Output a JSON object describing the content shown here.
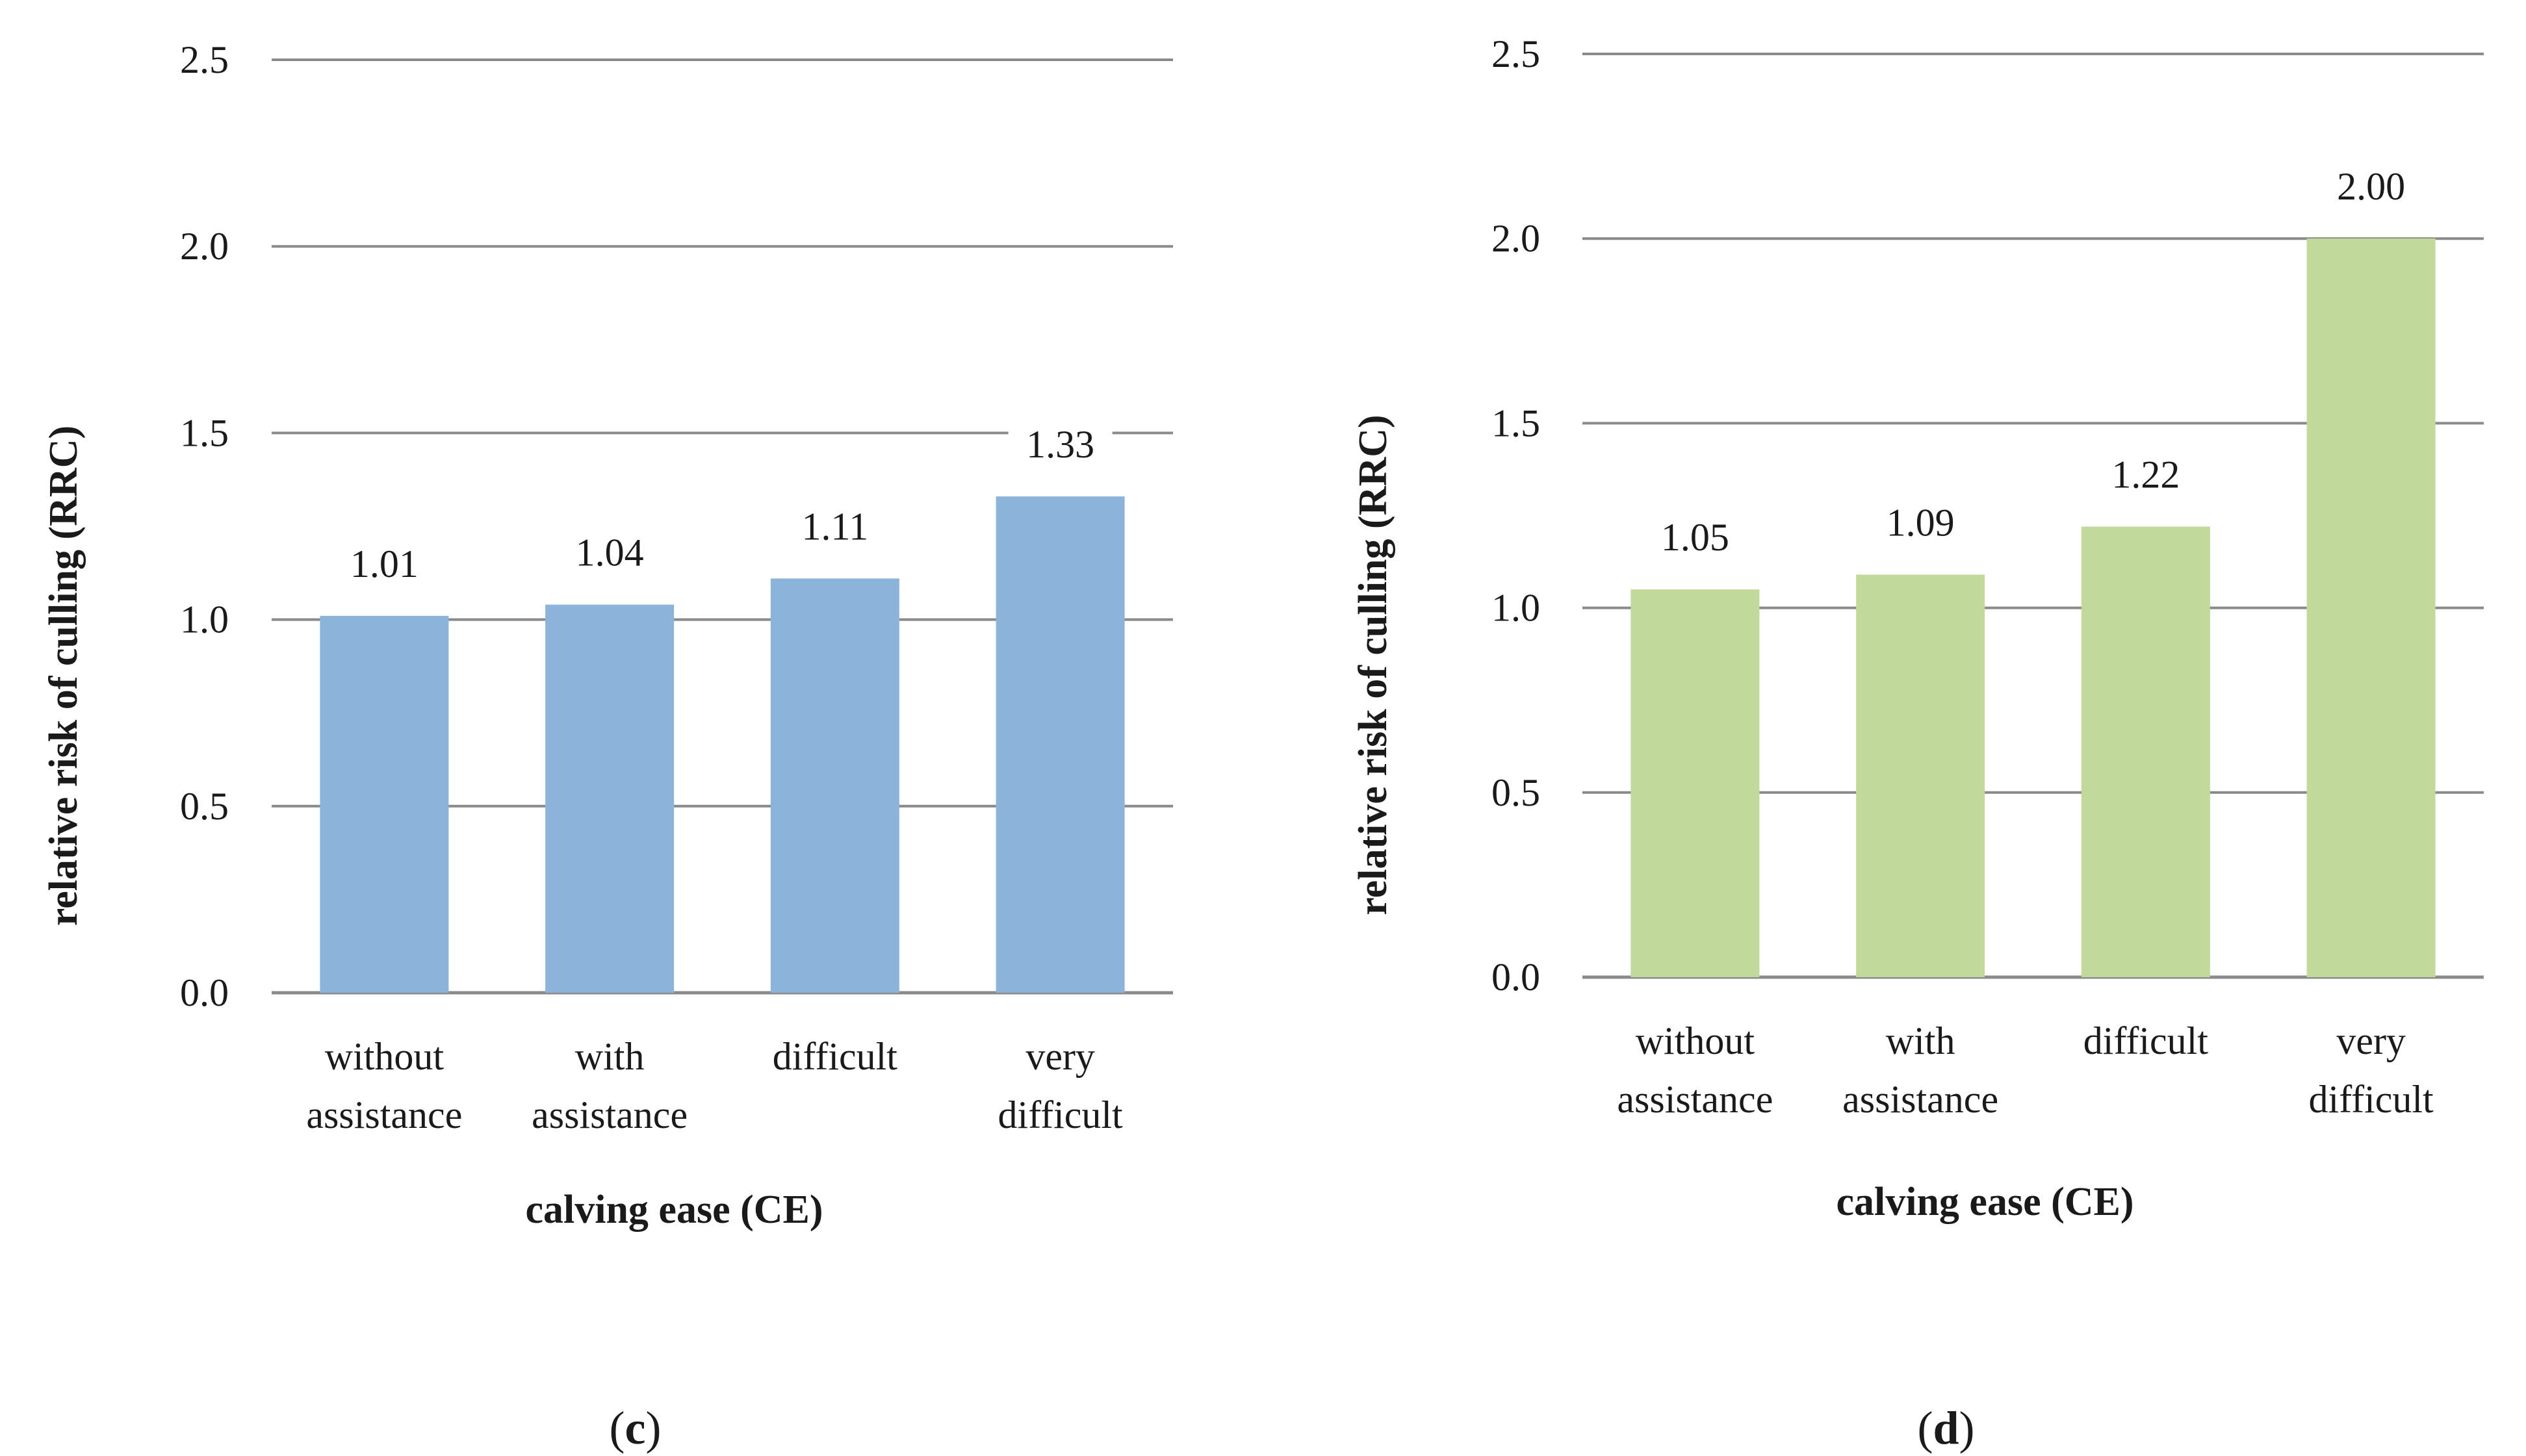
{
  "chart_data": [
    {
      "type": "bar",
      "panel": "c",
      "title": "",
      "xlabel": "calving ease (CE)",
      "ylabel": "relative risk of culling (RRC)",
      "ylim": [
        0,
        2.5
      ],
      "yticks": [
        "0.0",
        "0.5",
        "1.0",
        "1.5",
        "2.0",
        "2.5"
      ],
      "grid": true,
      "categories": [
        [
          "without",
          "assistance"
        ],
        [
          "with",
          "assistance"
        ],
        [
          "difficult"
        ],
        [
          "very",
          "difficult"
        ]
      ],
      "values": [
        1.01,
        1.04,
        1.11,
        1.33
      ],
      "data_labels": [
        "1.01",
        "1.04",
        "1.11",
        "1.33"
      ],
      "bar_color": "#8cb3d9",
      "caption_open": "(",
      "caption_letter": "c",
      "caption_close": ")"
    },
    {
      "type": "bar",
      "panel": "d",
      "title": "",
      "xlabel": "calving ease (CE)",
      "ylabel": "relative risk of culling (RRC)",
      "ylim": [
        0,
        2.5
      ],
      "yticks": [
        "0.0",
        "0.5",
        "1.0",
        "1.5",
        "2.0",
        "2.5"
      ],
      "grid": true,
      "categories": [
        [
          "without",
          "assistance"
        ],
        [
          "with",
          "assistance"
        ],
        [
          "difficult"
        ],
        [
          "very",
          "difficult"
        ]
      ],
      "values": [
        1.05,
        1.09,
        1.22,
        2.0
      ],
      "data_labels": [
        "1.05",
        "1.09",
        "1.22",
        "2.00"
      ],
      "bar_color": "#c2d99c",
      "caption_open": "(",
      "caption_letter": "d",
      "caption_close": ")"
    }
  ],
  "style": {
    "grid_color": "#8a8a8a",
    "axis_color": "#8a8a8a"
  }
}
